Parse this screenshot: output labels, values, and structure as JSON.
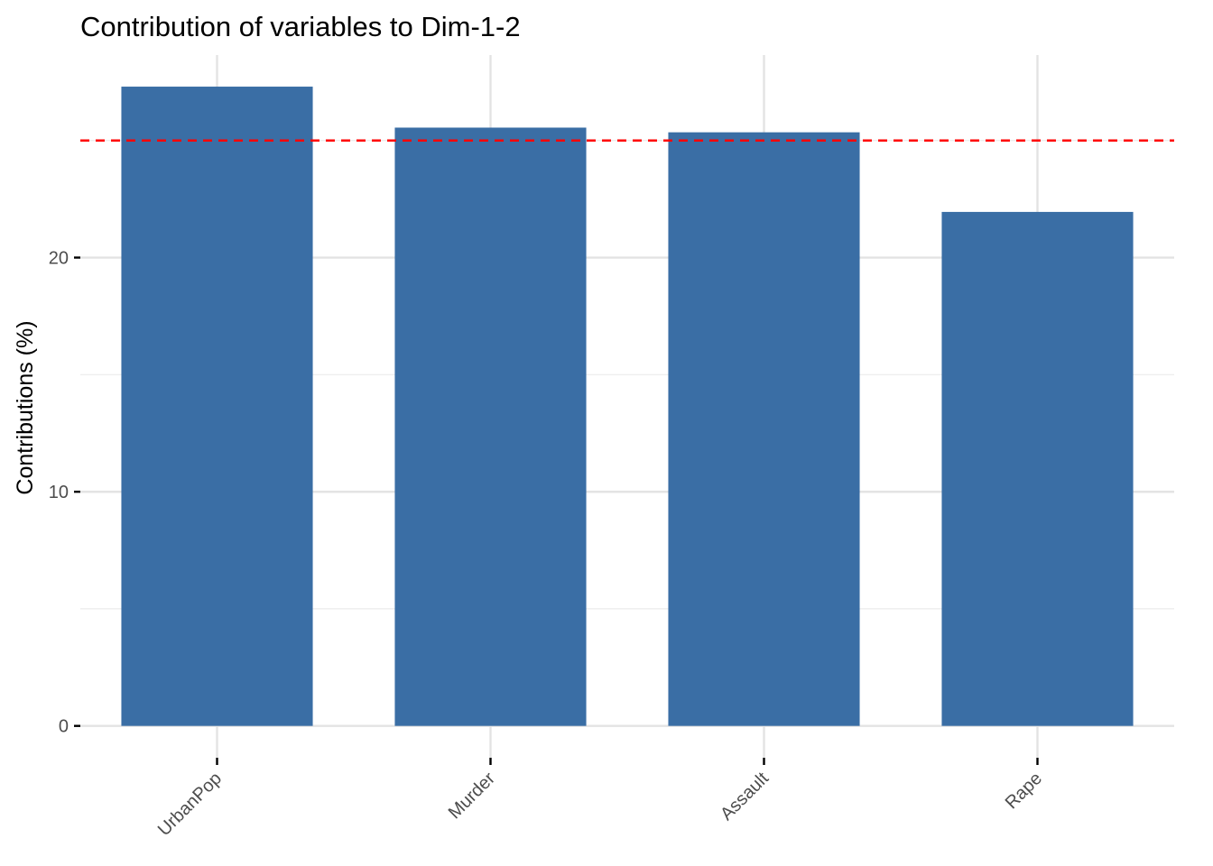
{
  "chart_data": {
    "type": "bar",
    "title": "Contribution of variables to Dim-1-2",
    "xlabel": "",
    "ylabel": "Contributions (%)",
    "categories": [
      "UrbanPop",
      "Murder",
      "Assault",
      "Rape"
    ],
    "values": [
      27.3,
      25.55,
      25.35,
      21.95
    ],
    "reference_line": {
      "value": 25,
      "color": "#ff0000",
      "style": "dashed"
    },
    "ylim": [
      -1.36,
      28.65
    ],
    "yticks": [
      0,
      10,
      20
    ],
    "y_minor_ticks": [
      5,
      15,
      25
    ],
    "grid": true,
    "legend": "none",
    "bar_color": "#3A6EA5",
    "x_tick_rotation": 45
  }
}
